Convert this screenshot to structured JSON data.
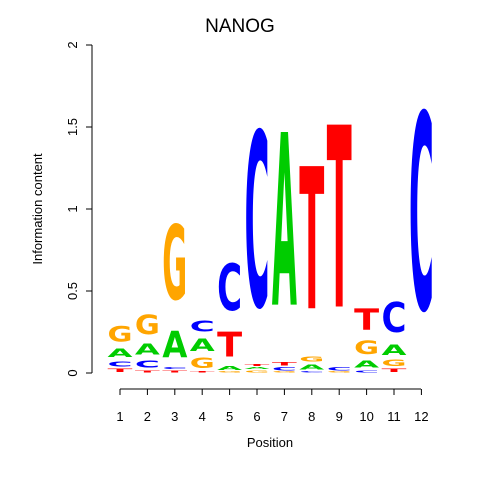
{
  "chart_data": {
    "type": "sequence-logo",
    "title": "NANOG",
    "xlabel": "Position",
    "ylabel": "Information content",
    "ylim": [
      0,
      2
    ],
    "yticks": [
      "0",
      "0.5",
      "1",
      "1.5",
      "2"
    ],
    "ytick_values": [
      0,
      0.5,
      1,
      1.5,
      2
    ],
    "positions": [
      "1",
      "2",
      "3",
      "4",
      "5",
      "6",
      "7",
      "8",
      "9",
      "10",
      "11",
      "12"
    ],
    "letter_colors": {
      "A": "#00cc00",
      "C": "#0000ff",
      "G": "#ffa500",
      "T": "#ff0000"
    },
    "columns": [
      [
        {
          "base": "T",
          "height": 0.03
        },
        {
          "base": "C",
          "height": 0.05
        },
        {
          "base": "A",
          "height": 0.08
        },
        {
          "base": "G",
          "height": 0.15
        }
      ],
      [
        {
          "base": "T",
          "height": 0.02
        },
        {
          "base": "C",
          "height": 0.07
        },
        {
          "base": "A",
          "height": 0.11
        },
        {
          "base": "G",
          "height": 0.19
        }
      ],
      [
        {
          "base": "T",
          "height": 0.02
        },
        {
          "base": "C",
          "height": 0.02
        },
        {
          "base": "A",
          "height": 0.26
        },
        {
          "base": "G",
          "height": 0.73
        }
      ],
      [
        {
          "base": "T",
          "height": 0.01
        },
        {
          "base": "G",
          "height": 0.1
        },
        {
          "base": "A",
          "height": 0.12
        },
        {
          "base": "C",
          "height": 0.11
        }
      ],
      [
        {
          "base": "G",
          "height": 0.01
        },
        {
          "base": "A",
          "height": 0.04
        },
        {
          "base": "T",
          "height": 0.24
        },
        {
          "base": "C",
          "height": 0.46
        }
      ],
      [
        {
          "base": "G",
          "height": 0.02
        },
        {
          "base": "A",
          "height": 0.02
        },
        {
          "base": "T",
          "height": 0.02
        },
        {
          "base": "C",
          "height": 1.71
        }
      ],
      [
        {
          "base": "G",
          "height": 0.01
        },
        {
          "base": "C",
          "height": 0.03
        },
        {
          "base": "T",
          "height": 0.03
        },
        {
          "base": "A",
          "height": 1.69
        }
      ],
      [
        {
          "base": "C",
          "height": 0.01
        },
        {
          "base": "A",
          "height": 0.05
        },
        {
          "base": "G",
          "height": 0.05
        },
        {
          "base": "T",
          "height": 1.39
        }
      ],
      [
        {
          "base": "G",
          "height": 0.01
        },
        {
          "base": "C",
          "height": 0.03
        },
        {
          "base": "T",
          "height": 1.78
        }
      ],
      [
        {
          "base": "C",
          "height": 0.02
        },
        {
          "base": "A",
          "height": 0.07
        },
        {
          "base": "G",
          "height": 0.13
        },
        {
          "base": "T",
          "height": 0.21
        }
      ],
      [
        {
          "base": "T",
          "height": 0.03
        },
        {
          "base": "G",
          "height": 0.06
        },
        {
          "base": "A",
          "height": 0.1
        },
        {
          "base": "C",
          "height": 0.29
        }
      ],
      [
        {
          "base": "C",
          "height": 1.92
        }
      ]
    ]
  }
}
